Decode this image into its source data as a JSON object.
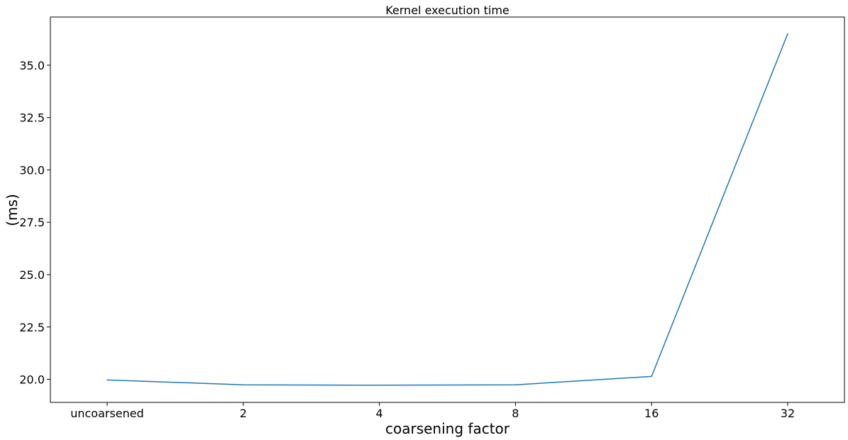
{
  "chart_data": {
    "type": "line",
    "title": "Kernel execution time",
    "xlabel": "coarsening factor",
    "ylabel": "(ms)",
    "categories": [
      "uncoarsened",
      "2",
      "4",
      "8",
      "16",
      "32"
    ],
    "series": [
      {
        "values": [
          19.97,
          19.74,
          19.72,
          19.74,
          20.14,
          36.5
        ],
        "color": "#1f77b4"
      }
    ],
    "ylim": [
      18.9,
      37.3
    ],
    "yticks": [
      20.0,
      22.5,
      25.0,
      27.5,
      30.0,
      32.5,
      35.0
    ],
    "ytick_labels": [
      "20.0",
      "22.5",
      "25.0",
      "27.5",
      "30.0",
      "32.5",
      "35.0"
    ],
    "grid": false,
    "legend": "none"
  }
}
